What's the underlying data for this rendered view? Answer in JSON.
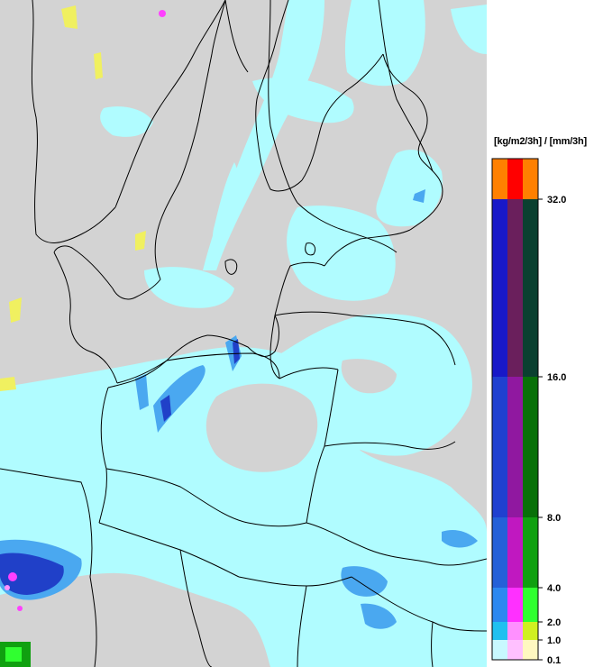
{
  "legend": {
    "unit_label": "[kg/m2/3h] / [mm/3h]",
    "ticks": [
      {
        "value": 32.0,
        "label": "32.0"
      },
      {
        "value": 16.0,
        "label": "16.0"
      },
      {
        "value": 8.0,
        "label": "8.0"
      },
      {
        "value": 4.0,
        "label": "4.0"
      },
      {
        "value": 2.0,
        "label": "2.0"
      },
      {
        "value": 1.0,
        "label": "1.0"
      },
      {
        "value": 0.1,
        "label": "0.1"
      }
    ],
    "bands": [
      {
        "from": 32.0,
        "to": null,
        "colors": [
          "#ff8000",
          "#ff0000",
          "#ff8000"
        ]
      },
      {
        "from": 16.0,
        "to": 32.0,
        "colors": [
          "#1818c8",
          "#6a1f5c",
          "#0a4030"
        ]
      },
      {
        "from": 8.0,
        "to": 16.0,
        "colors": [
          "#2040d0",
          "#9018a0",
          "#087008"
        ]
      },
      {
        "from": 4.0,
        "to": 8.0,
        "colors": [
          "#2460d8",
          "#c018c0",
          "#10a010"
        ]
      },
      {
        "from": 2.0,
        "to": 4.0,
        "colors": [
          "#2c88f0",
          "#ff30ff",
          "#30ff30"
        ]
      },
      {
        "from": 1.0,
        "to": 2.0,
        "colors": [
          "#20c0f0",
          "#ff90ff",
          "#d0f020"
        ]
      },
      {
        "from": 0.1,
        "to": 1.0,
        "colors": [
          "#c8f8ff",
          "#ffc0ff",
          "#fff8c0"
        ]
      }
    ]
  },
  "map_colors": {
    "land": "#d3d3d3",
    "light_rain": "#b0fcff",
    "moderate_rain": "#4aa8f0",
    "heavy_rain": "#2040c8",
    "mixed": "#ff40ff",
    "snow": "#f0f060",
    "border": "#000000"
  }
}
